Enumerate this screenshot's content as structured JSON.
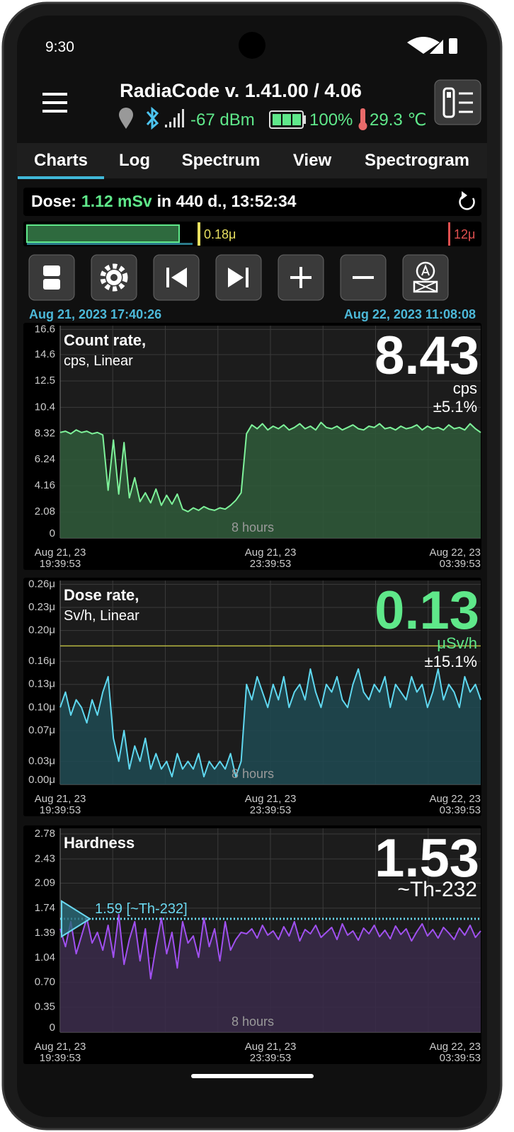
{
  "status_bar": {
    "time": "9:30"
  },
  "header": {
    "title": "RadiaCode v. 1.41.00 / 4.06",
    "signal": "-67 dBm",
    "battery": "100%",
    "temperature": "29.3 ℃"
  },
  "tabs": [
    "Charts",
    "Log",
    "Spectrum",
    "View",
    "Spectrogram"
  ],
  "dose": {
    "label": "Dose:",
    "value": "1.12 mSv",
    "period": "in 440 d., 13:52:34"
  },
  "dose_bar": {
    "marker": "0.18μ",
    "limit": "12μ"
  },
  "range": {
    "start": "Aug 21, 2023 17:40:26",
    "end": "Aug 22, 2023 11:08:08"
  },
  "chart_data": [
    {
      "type": "line",
      "title": "Count rate,",
      "subtitle": "cps, Linear",
      "color": "#7ef29a",
      "fill": "#2f5a3a",
      "reading": {
        "value": 8.43,
        "unit": "cps",
        "error": "±5.1%",
        "color": "#ffffff"
      },
      "span_label": "8 hours",
      "xticks": [
        {
          "date": "Aug 21, 23",
          "time": "19:39:53"
        },
        {
          "date": "Aug 21, 23",
          "time": "23:39:53"
        },
        {
          "date": "Aug 22, 23",
          "time": "03:39:53"
        }
      ],
      "ylim": [
        0,
        16.9
      ],
      "yticks": [
        0,
        2.08,
        4.16,
        6.24,
        8.32,
        10.4,
        12.5,
        14.6,
        16.6
      ],
      "values": [
        8.4,
        8.5,
        8.3,
        8.6,
        8.4,
        8.5,
        8.3,
        8.4,
        8.2,
        3.8,
        7.8,
        3.5,
        7.6,
        3.2,
        4.8,
        2.9,
        3.6,
        2.8,
        3.9,
        2.6,
        3.4,
        2.7,
        3.5,
        2.3,
        2.1,
        2.4,
        2.2,
        2.5,
        2.3,
        2.2,
        2.4,
        2.3,
        2.6,
        3.0,
        3.6,
        8.3,
        9.0,
        8.7,
        9.1,
        8.6,
        8.9,
        8.7,
        9.0,
        8.6,
        8.8,
        9.1,
        8.7,
        8.9,
        8.6,
        9.2,
        8.8,
        8.7,
        8.9,
        8.6,
        8.8,
        9.0,
        8.7,
        8.6,
        8.9,
        8.8,
        9.1,
        8.7,
        8.8,
        8.6,
        8.9,
        8.7,
        8.8,
        9.0,
        8.6,
        8.9,
        8.7,
        8.8,
        8.6,
        9.0,
        8.7,
        8.8,
        8.6,
        9.1,
        8.7,
        8.4
      ]
    },
    {
      "type": "line",
      "title": "Dose rate,",
      "subtitle": "Sv/h, Linear",
      "color": "#5fd8f0",
      "fill": "#1f4a52",
      "reading": {
        "value": 0.13,
        "unit": "μSv/h",
        "error": "±15.1%",
        "color": "#5fe88a"
      },
      "span_label": "8 hours",
      "threshold": 0.18,
      "xticks": [
        {
          "date": "Aug 21, 23",
          "time": "19:39:53"
        },
        {
          "date": "Aug 21, 23",
          "time": "23:39:53"
        },
        {
          "date": "Aug 22, 23",
          "time": "03:39:53"
        }
      ],
      "ylim": [
        0,
        0.265
      ],
      "yticks": [
        {
          "value": 0,
          "label": "0.00μ"
        },
        {
          "value": 0.03,
          "label": "0.03μ"
        },
        {
          "value": 0.07,
          "label": "0.07μ"
        },
        {
          "value": 0.1,
          "label": "0.10μ"
        },
        {
          "value": 0.13,
          "label": "0.13μ"
        },
        {
          "value": 0.16,
          "label": "0.16μ"
        },
        {
          "value": 0.2,
          "label": "0.20μ"
        },
        {
          "value": 0.23,
          "label": "0.23μ"
        },
        {
          "value": 0.26,
          "label": "0.26μ"
        }
      ],
      "values": [
        0.1,
        0.12,
        0.09,
        0.11,
        0.1,
        0.08,
        0.11,
        0.09,
        0.12,
        0.14,
        0.06,
        0.03,
        0.07,
        0.02,
        0.05,
        0.03,
        0.06,
        0.02,
        0.04,
        0.02,
        0.03,
        0.01,
        0.04,
        0.02,
        0.03,
        0.02,
        0.04,
        0.01,
        0.03,
        0.02,
        0.03,
        0.02,
        0.04,
        0.01,
        0.03,
        0.13,
        0.11,
        0.14,
        0.12,
        0.1,
        0.13,
        0.11,
        0.14,
        0.1,
        0.12,
        0.13,
        0.11,
        0.15,
        0.12,
        0.1,
        0.13,
        0.12,
        0.14,
        0.11,
        0.1,
        0.13,
        0.15,
        0.12,
        0.11,
        0.13,
        0.12,
        0.14,
        0.1,
        0.13,
        0.12,
        0.11,
        0.14,
        0.12,
        0.13,
        0.1,
        0.12,
        0.15,
        0.11,
        0.13,
        0.12,
        0.1,
        0.14,
        0.12,
        0.13,
        0.11
      ]
    },
    {
      "type": "line",
      "title": "Hardness",
      "color": "#a050f0",
      "fill": "#3a2a4a",
      "reading": {
        "value": 1.53,
        "unit": "~Th-232",
        "color": "#ffffff"
      },
      "span_label": "8 hours",
      "reference": {
        "value": 1.59,
        "label": "1.59 [~Th-232]"
      },
      "xticks": [
        {
          "date": "Aug 21, 23",
          "time": "19:39:53"
        },
        {
          "date": "Aug 21, 23",
          "time": "23:39:53"
        },
        {
          "date": "Aug 22, 23",
          "time": "03:39:53"
        }
      ],
      "ylim": [
        0,
        2.86
      ],
      "yticks": [
        0,
        0.35,
        {
          "value": 0.7,
          "label": "0.70"
        },
        1.04,
        1.39,
        1.74,
        2.09,
        2.43,
        2.78
      ],
      "values": [
        1.45,
        1.2,
        1.55,
        1.1,
        1.35,
        1.6,
        1.25,
        1.4,
        1.15,
        1.5,
        1.05,
        1.65,
        0.95,
        1.3,
        1.55,
        1.0,
        1.45,
        0.75,
        1.2,
        1.6,
        1.1,
        1.4,
        0.9,
        1.55,
        1.25,
        1.35,
        1.05,
        1.6,
        1.2,
        1.45,
        1.0,
        1.55,
        1.15,
        1.3,
        1.4,
        1.38,
        1.45,
        1.32,
        1.5,
        1.36,
        1.42,
        1.3,
        1.48,
        1.35,
        1.55,
        1.28,
        1.44,
        1.38,
        1.5,
        1.33,
        1.4,
        1.47,
        1.3,
        1.52,
        1.36,
        1.42,
        1.29,
        1.46,
        1.38,
        1.5,
        1.34,
        1.43,
        1.31,
        1.49,
        1.37,
        1.45,
        1.28,
        1.41,
        1.52,
        1.35,
        1.44,
        1.32,
        1.47,
        1.39,
        1.3,
        1.46,
        1.36,
        1.5,
        1.33,
        1.42
      ]
    }
  ]
}
